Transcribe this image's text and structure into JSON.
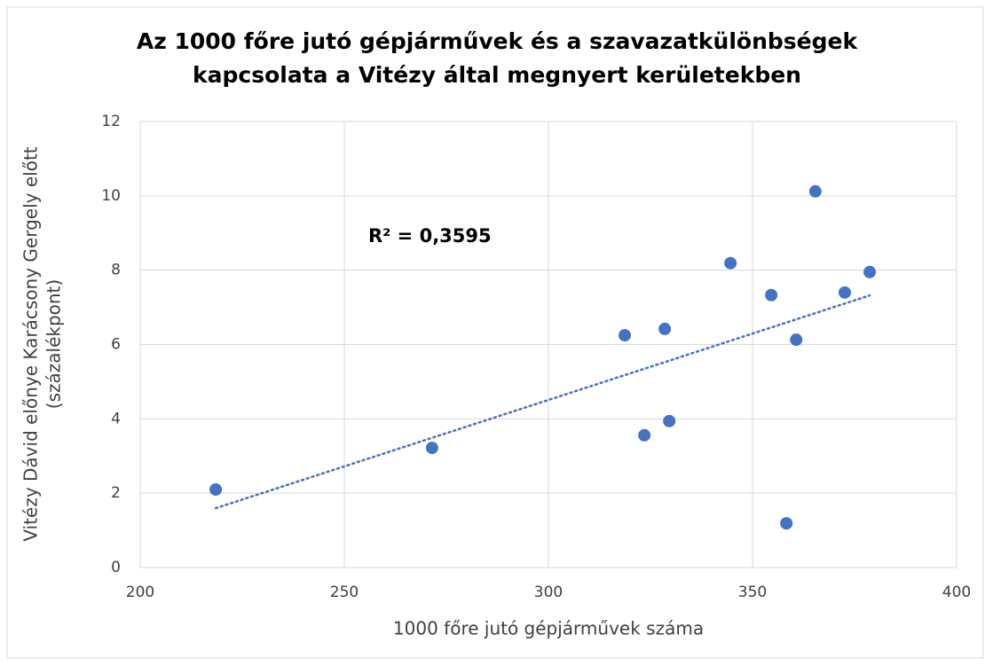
{
  "chart_data": {
    "type": "scatter",
    "title": [
      "Az 1000 főre jutó gépjárművek és a szavazatkülönbségek",
      "kapcsolata a Vitézy által megnyert kerületekben"
    ],
    "x_label": "1000 főre jutó gépjárművek száma",
    "y_label": [
      "Vitézy Dávid előnye Karácsony Gergely előtt",
      "(százalékpont)"
    ],
    "annotation": "R² = 0,3595",
    "series": [
      {
        "color": "#4472c4",
        "x": [
          218.5,
          271.5,
          318.7,
          328.5,
          323.5,
          329.6,
          344.6,
          354.6,
          358.3,
          360.7,
          365.4,
          372.6,
          378.7
        ],
        "values": [
          2.1,
          3.22,
          6.25,
          6.42,
          3.56,
          3.94,
          8.19,
          7.33,
          1.19,
          6.13,
          10.12,
          7.4,
          7.95
        ]
      }
    ],
    "trendline": {
      "type": "linear",
      "color": "#4472c4",
      "style": "dotted"
    },
    "xlim": [
      200,
      400
    ],
    "xticks": [
      200,
      250,
      300,
      350,
      400
    ],
    "ylim": [
      0,
      12
    ],
    "yticks": [
      0,
      2,
      4,
      6,
      8,
      10,
      12
    ],
    "grid": true
  }
}
